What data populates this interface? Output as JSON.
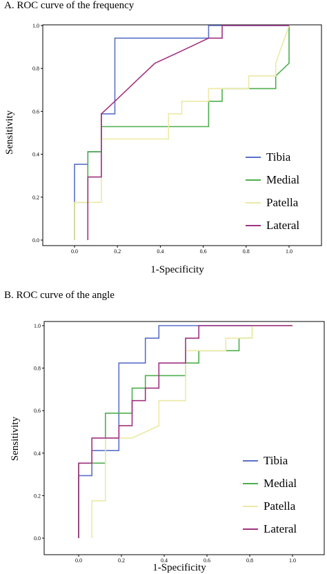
{
  "colors": {
    "tibia": "#5a6fc8",
    "medial": "#4cae4c",
    "patella": "#ece9a4",
    "lateral": "#a0307f"
  },
  "chart_data": [
    {
      "type": "line",
      "panel_label": "A. ROC curve of the frequency",
      "xlabel": "1-Specificity",
      "ylabel": "Sensitivity",
      "xlim": [
        0.0,
        1.0
      ],
      "ylim": [
        0.0,
        1.0
      ],
      "x_ticks": [
        "0.0",
        "0.2",
        "0.4",
        "0.6",
        "0.8",
        "1.0"
      ],
      "y_ticks": [
        "0.0",
        "0.2",
        "0.4",
        "0.6",
        "0.8",
        "1.0"
      ],
      "grid": false,
      "legend_position": "bottom-right",
      "series": [
        {
          "name": "Tibia",
          "color_key": "tibia",
          "x": [
            0.0,
            0.0,
            0.062,
            0.062,
            0.125,
            0.125,
            0.188,
            0.188,
            0.625,
            0.625,
            1.0
          ],
          "y": [
            0.0,
            0.353,
            0.353,
            0.412,
            0.412,
            0.588,
            0.588,
            0.941,
            0.941,
            1.0,
            1.0
          ]
        },
        {
          "name": "Medial",
          "color_key": "medial",
          "x": [
            0.0,
            0.0,
            0.062,
            0.062,
            0.125,
            0.125,
            0.625,
            0.625,
            0.688,
            0.688,
            0.938,
            0.938,
            1.0,
            1.0
          ],
          "y": [
            0.0,
            0.176,
            0.176,
            0.412,
            0.412,
            0.529,
            0.529,
            0.647,
            0.647,
            0.706,
            0.706,
            0.765,
            0.824,
            1.0
          ]
        },
        {
          "name": "Patella",
          "color_key": "patella",
          "x": [
            0.0,
            0.0,
            0.125,
            0.125,
            0.438,
            0.438,
            0.5,
            0.5,
            0.625,
            0.625,
            0.812,
            0.812,
            0.938,
            0.938,
            1.0
          ],
          "y": [
            0.0,
            0.176,
            0.176,
            0.471,
            0.471,
            0.588,
            0.588,
            0.647,
            0.647,
            0.706,
            0.706,
            0.765,
            0.765,
            0.824,
            1.0
          ]
        },
        {
          "name": "Lateral",
          "color_key": "lateral",
          "x": [
            0.062,
            0.062,
            0.125,
            0.125,
            0.188,
            0.188,
            0.25,
            0.25,
            0.312,
            0.312,
            0.375,
            0.375,
            0.5,
            0.5,
            0.625,
            0.625,
            0.688,
            0.688,
            1.0
          ],
          "y": [
            0.0,
            0.294,
            0.294,
            0.588,
            0.647,
            0.647,
            0.706,
            0.706,
            0.765,
            0.765,
            0.824,
            0.824,
            0.882,
            0.882,
            0.941,
            0.941,
            0.941,
            1.0,
            1.0
          ]
        }
      ]
    },
    {
      "type": "line",
      "panel_label": "B. ROC curve of the angle",
      "xlabel": "1-Specificity",
      "ylabel": "Sensitivity",
      "xlim": [
        0.0,
        1.0
      ],
      "ylim": [
        0.0,
        1.0
      ],
      "x_ticks": [
        "0.0",
        "0.2",
        "0.4",
        "0.6",
        "0.8",
        "1.0"
      ],
      "y_ticks": [
        "0.0",
        "0.2",
        "0.4",
        "0.6",
        "0.8",
        "1.0"
      ],
      "grid": false,
      "legend_position": "bottom-right",
      "series": [
        {
          "name": "Tibia",
          "color_key": "tibia",
          "x": [
            0.0,
            0.0,
            0.062,
            0.062,
            0.125,
            0.125,
            0.188,
            0.188,
            0.25,
            0.25,
            0.312,
            0.312,
            0.375,
            0.375,
            1.0
          ],
          "y": [
            0.0,
            0.294,
            0.294,
            0.412,
            0.412,
            0.412,
            0.412,
            0.824,
            0.824,
            0.824,
            0.824,
            0.941,
            0.941,
            1.0,
            1.0
          ]
        },
        {
          "name": "Medial",
          "color_key": "medial",
          "x": [
            0.0,
            0.0,
            0.062,
            0.062,
            0.125,
            0.125,
            0.25,
            0.25,
            0.312,
            0.312,
            0.5,
            0.5,
            0.562,
            0.562,
            0.75,
            0.75,
            0.812,
            0.812
          ],
          "y": [
            0.0,
            0.353,
            0.353,
            0.353,
            0.353,
            0.588,
            0.588,
            0.706,
            0.706,
            0.765,
            0.765,
            0.824,
            0.824,
            0.882,
            0.882,
            0.941,
            0.941,
            1.0
          ]
        },
        {
          "name": "Patella",
          "color_key": "patella",
          "x": [
            0.062,
            0.062,
            0.125,
            0.125,
            0.25,
            0.25,
            0.375,
            0.375,
            0.5,
            0.5,
            0.688,
            0.688,
            0.812,
            0.812,
            1.0
          ],
          "y": [
            0.0,
            0.176,
            0.176,
            0.471,
            0.471,
            0.471,
            0.529,
            0.647,
            0.647,
            0.882,
            0.882,
            0.941,
            0.941,
            1.0,
            1.0
          ]
        },
        {
          "name": "Lateral",
          "color_key": "lateral",
          "x": [
            0.0,
            0.0,
            0.062,
            0.062,
            0.188,
            0.188,
            0.25,
            0.25,
            0.312,
            0.312,
            0.375,
            0.375,
            0.5,
            0.5,
            0.562,
            0.562,
            1.0
          ],
          "y": [
            0.0,
            0.353,
            0.353,
            0.471,
            0.471,
            0.529,
            0.529,
            0.647,
            0.647,
            0.706,
            0.706,
            0.824,
            0.824,
            0.941,
            0.941,
            1.0,
            1.0
          ]
        }
      ]
    }
  ]
}
